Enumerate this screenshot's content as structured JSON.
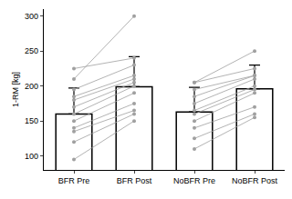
{
  "chart_data": {
    "type": "bar",
    "y_label": "1-RM [kg]",
    "categories": [
      "BFR Pre",
      "BFR Post",
      "NoBFR Pre",
      "NoBFR Post"
    ],
    "values": [
      160,
      199,
      163,
      196
    ],
    "errors": [
      37,
      43,
      35,
      34
    ],
    "color": "#ffffff",
    "ylim": [
      80,
      310
    ],
    "yticks": [
      100,
      150,
      200,
      250,
      300
    ],
    "grid": false,
    "paired": [
      {
        "from": "BFR Pre",
        "to": "BFR Post",
        "color": "#a0a0a0",
        "marker": "circle",
        "values": [
          [
            225,
            240
          ],
          [
            210,
            300
          ],
          [
            195,
            230
          ],
          [
            185,
            215
          ],
          [
            180,
            210
          ],
          [
            170,
            205
          ],
          [
            160,
            200
          ],
          [
            150,
            190
          ],
          [
            140,
            175
          ],
          [
            135,
            165
          ],
          [
            120,
            160
          ],
          [
            95,
            150
          ]
        ]
      },
      {
        "from": "NoBFR Pre",
        "to": "NoBFR Post",
        "color": "#a0a0a0",
        "marker": "circle",
        "values": [
          [
            205,
            250
          ],
          [
            205,
            225
          ],
          [
            195,
            215
          ],
          [
            185,
            215
          ],
          [
            175,
            210
          ],
          [
            165,
            200
          ],
          [
            160,
            195
          ],
          [
            150,
            190
          ],
          [
            140,
            170
          ],
          [
            125,
            160
          ],
          [
            110,
            155
          ]
        ]
      }
    ]
  }
}
